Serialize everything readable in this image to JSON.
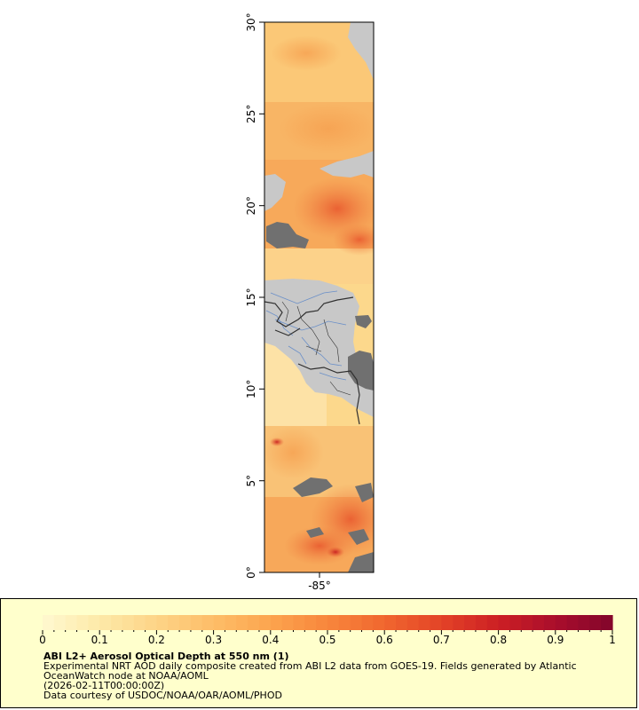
{
  "map": {
    "lat_ticks": [
      "0°",
      "5°",
      "10°",
      "15°",
      "20°",
      "25°",
      "30°"
    ],
    "lon_ticks": [
      "-85°"
    ],
    "lat_range": [
      0,
      30
    ],
    "colors": {
      "land": "#c8c8c8",
      "no_data_land": "#707070",
      "borders": "#303030",
      "rivers": "#6a8fc8",
      "frame": "#000000"
    }
  },
  "legend": {
    "ticks": [
      "0",
      "0.1",
      "0.2",
      "0.3",
      "0.4",
      "0.5",
      "0.6",
      "0.7",
      "0.8",
      "0.9",
      "1"
    ],
    "range": [
      0,
      1
    ],
    "colors": [
      "#fff8d0",
      "#fde9a8",
      "#fdd487",
      "#fdbd68",
      "#fca44e",
      "#f8863c",
      "#f0672f",
      "#e34327",
      "#cc1f24",
      "#aa0e2c",
      "#82052b"
    ],
    "title": "ABI L2+ Aerosol Optical Depth at 550 nm (1)",
    "line1": "Experimental NRT AOD daily composite created from ABI L2 data from GOES-19. Fields generated by Atlantic",
    "line2": "OceanWatch node at NOAA/AOML",
    "line3": "(2026-02-11T00:00:00Z)",
    "line4": "Data courtesy of USDOC/NOAA/OAR/AOML/PHOD"
  }
}
